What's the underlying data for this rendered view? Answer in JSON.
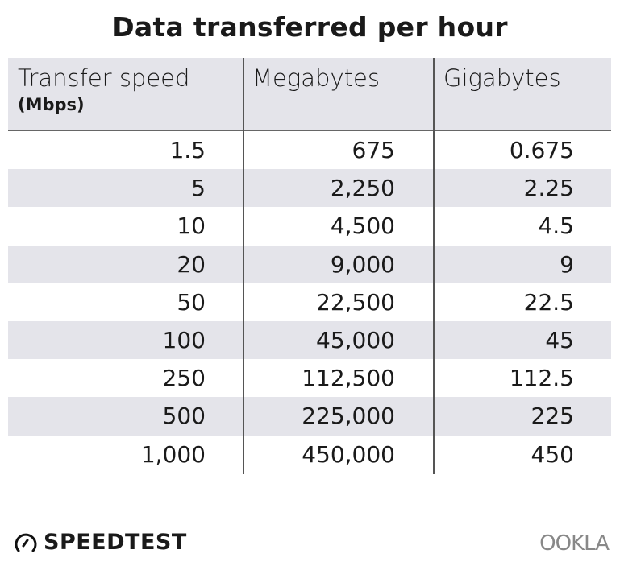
{
  "title": "Data transferred per hour",
  "chart_data": {
    "type": "table",
    "title": "Data transferred per hour",
    "columns": [
      {
        "label": "Transfer speed",
        "unit": "(Mbps)"
      },
      {
        "label": "Megabytes"
      },
      {
        "label": "Gigabytes"
      }
    ],
    "rows": [
      [
        "1.5",
        "675",
        "0.675"
      ],
      [
        "5",
        "2,250",
        "2.25"
      ],
      [
        "10",
        "4,500",
        "4.5"
      ],
      [
        "20",
        "9,000",
        "9"
      ],
      [
        "50",
        "22,500",
        "22.5"
      ],
      [
        "100",
        "45,000",
        "45"
      ],
      [
        "250",
        "112,500",
        "112.5"
      ],
      [
        "500",
        "225,000",
        "225"
      ],
      [
        "1,000",
        "450,000",
        "450"
      ]
    ],
    "colors": {
      "header_bg": "#e4e4ea",
      "alt_row_bg": "#e4e4ea",
      "divider": "#555555"
    }
  },
  "footer": {
    "brand_left": "SPEEDTEST",
    "brand_right": "OOKLA"
  }
}
